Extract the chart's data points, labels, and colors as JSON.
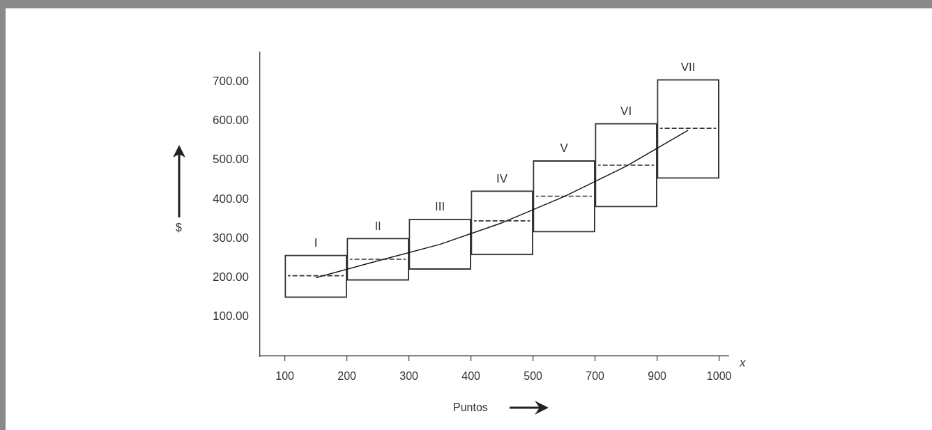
{
  "chart_data": {
    "type": "box",
    "xlabel": "Puntos",
    "ylabel": "$",
    "categories": [
      "I",
      "II",
      "III",
      "IV",
      "V",
      "VI",
      "VII"
    ],
    "ylim": [
      0,
      775
    ],
    "yticks": [
      {
        "value": 100,
        "label": "100.00"
      },
      {
        "value": 200,
        "label": "200.00"
      },
      {
        "value": 300,
        "label": "300.00"
      },
      {
        "value": 400,
        "label": "400.00"
      },
      {
        "value": 500,
        "label": "500.00"
      },
      {
        "value": 600,
        "label": "600.00"
      },
      {
        "value": 700,
        "label": "700.00"
      }
    ],
    "series": [
      {
        "color": "#333333",
        "line_style": "dashed",
        "boxes": [
          {
            "low": 149,
            "q1": 149,
            "median": 205,
            "q3": 258,
            "high": 258
          },
          {
            "low": 193,
            "q1": 193,
            "median": 247,
            "q3": 301,
            "high": 301
          },
          {
            "low": 221,
            "q1": 221,
            "median": null,
            "q3": 350,
            "high": 350
          },
          {
            "low": 258,
            "q1": 258,
            "median": 345,
            "q3": 422,
            "high": 422
          },
          {
            "low": 316,
            "q1": 316,
            "median": 408,
            "q3": 499,
            "high": 499
          },
          {
            "low": 380,
            "q1": 380,
            "median": 487,
            "q3": 594,
            "high": 594
          },
          {
            "low": 453,
            "q1": 453,
            "median": 581,
            "q3": 706,
            "high": 706
          }
        ]
      },
      {
        "type": "line",
        "line_style": "solid",
        "color": "#111111",
        "values": [
          200,
          243,
          285,
          340,
          407,
          484,
          576
        ]
      }
    ],
    "annotations": [
      "100",
      "200",
      "300",
      "400",
      "500",
      "700",
      "900",
      "1000",
      "x"
    ]
  }
}
